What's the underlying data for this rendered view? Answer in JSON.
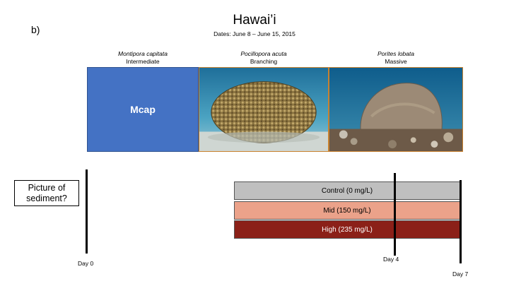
{
  "panel_label": "b)",
  "title": "Hawai’i",
  "subtitle": "Dates: June 8 – June 15, 2015",
  "species": [
    {
      "scientific": "Montipora capitata",
      "morphology": "Intermediate",
      "box_label": "Mcap"
    },
    {
      "scientific": "Pocillopora acuta",
      "morphology": "Branching"
    },
    {
      "scientific": "Porites lobata",
      "morphology": "Massive"
    }
  ],
  "question_box": "Picture of sediment?",
  "treatments": [
    {
      "label": "Control (0 mg/L)",
      "color": "#bfbfbf"
    },
    {
      "label": "Mid (150 mg/L)",
      "color": "#eba28a"
    },
    {
      "label": "High (235 mg/L)",
      "color": "#8b2018"
    }
  ],
  "timeline": {
    "day0": "Day 0",
    "day4": "Day 4",
    "day7": "Day 7"
  }
}
